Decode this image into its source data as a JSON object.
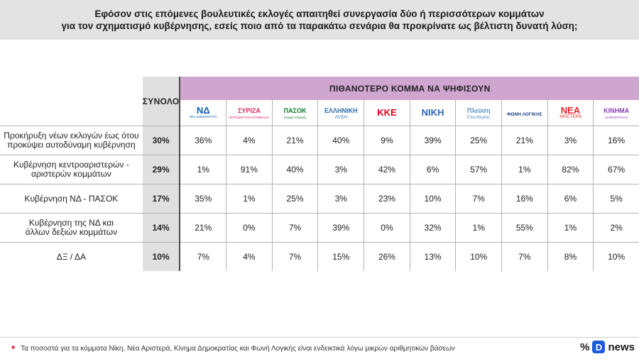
{
  "title": {
    "line1": "Εφόσον στις επόμενες βουλευτικές εκλογές απαιτηθεί συνεργασία δύο ή περισσότερων κομμάτων",
    "line2": "για τον σχηματισμό κυβέρνησης, εσείς ποιο από τα παρακάτω σενάρια θα προκρίνατε ως βέλτιστη δυνατή λύση;"
  },
  "header": {
    "total_label": "ΣΥΝΟΛΟ",
    "party_band_label": "ΠΙΘΑΝΟΤΕΡΟ ΚΟΜΜΑ ΝΑ ΨΗΦΙΣΟΥΝ"
  },
  "parties": [
    {
      "logo_text": "ΝΔ",
      "sub": "ΝΕΑ ΔΗΜΟΚΡΑΤΙΑ",
      "color": "#0d5fb3",
      "icon": "nd-logo-icon"
    },
    {
      "logo_text": "ΣΥΡΙΖΑ",
      "sub": "ΠΡΟΟΔΕΥΤΙΚΗ ΣΥΜΜΑΧΙΑ",
      "color": "#e0245e",
      "icon": "syriza-logo-icon"
    },
    {
      "logo_text": "ΠΑΣΟΚ",
      "sub": "Κίνημα Αλλαγής",
      "color": "#0b7a2e",
      "icon": "pasok-logo-icon"
    },
    {
      "logo_text": "ΕΛΛΗΝΙΚΗ",
      "sub": "ΛΥΣΗ",
      "color": "#2b6ca8",
      "icon": "elliniki-lysi-logo-icon"
    },
    {
      "logo_text": "ΚΚΕ",
      "sub": "",
      "color": "#e0001b",
      "icon": "kke-logo-icon"
    },
    {
      "logo_text": "ΝΙΚΗ",
      "sub": "",
      "color": "#2a66b8",
      "icon": "niki-logo-icon"
    },
    {
      "logo_text": "Πλεύση",
      "sub": "Ελευθερίας",
      "color": "#5a8fc7",
      "icon": "plefsi-logo-icon"
    },
    {
      "logo_text": "ΦΩΝΗ ΛΟΓΙΚΗΣ",
      "sub": "",
      "color": "#1d3f8a",
      "icon": "foni-logikis-logo-icon"
    },
    {
      "logo_text": "ΝΕΑ",
      "sub": "ΑΡΙΣΤΕΡΑ",
      "color": "#e3262c",
      "icon": "nea-aristera-logo-icon"
    },
    {
      "logo_text": "ΚΙΝΗΜΑ",
      "sub": "ΔΗΜΟΚΡΑΤΙΑΣ",
      "color": "#8a3fb5",
      "icon": "kinima-dimokratias-logo-icon"
    }
  ],
  "chart_data": {
    "type": "table",
    "title": "Εφόσον στις επόμενες βουλευτικές εκλογές απαιτηθεί συνεργασία δύο ή περισσότερων κομμάτων για τον σχηματισμό κυβέρνησης, εσείς ποιο από τα παρακάτω σενάρια θα προκρίνατε ως βέλτιστη δυνατή λύση;",
    "columns": [
      "ΣΥΝΟΛΟ",
      "ΝΔ",
      "ΣΥΡΙΖΑ",
      "ΠΑΣΟΚ",
      "ΕΛΛΗΝΙΚΗ ΛΥΣΗ",
      "ΚΚΕ",
      "ΝΙΚΗ",
      "Πλεύση Ελευθερίας",
      "ΦΩΝΗ ΛΟΓΙΚΗΣ",
      "ΝΕΑ ΑΡΙΣΤΕΡΑ",
      "ΚΙΝΗΜΑ ΔΗΜΟΚΡΑΤΙΑΣ"
    ],
    "rows": [
      {
        "label_lines": [
          "Προκήρυξη νέων εκλογών έως ότου",
          "προκύψει αυτοδύναμη κυβέρνηση"
        ],
        "total": "30%",
        "values": [
          "36%",
          "4%",
          "21%",
          "40%",
          "9%",
          "39%",
          "25%",
          "21%",
          "3%",
          "16%"
        ]
      },
      {
        "label_lines": [
          "Κυβέρνηση κεντροαριστερών -",
          "αριστερών κομμάτων"
        ],
        "total": "29%",
        "values": [
          "1%",
          "91%",
          "40%",
          "3%",
          "42%",
          "6%",
          "57%",
          "1%",
          "82%",
          "67%"
        ]
      },
      {
        "label_lines": [
          "Κυβέρνηση ΝΔ - ΠΑΣΟΚ",
          ""
        ],
        "total": "17%",
        "values": [
          "35%",
          "1%",
          "25%",
          "3%",
          "23%",
          "10%",
          "7%",
          "16%",
          "6%",
          "5%"
        ]
      },
      {
        "label_lines": [
          "Κυβέρνηση της ΝΔ και",
          "άλλων δεξιών κομμάτων"
        ],
        "total": "14%",
        "values": [
          "21%",
          "0%",
          "7%",
          "39%",
          "0%",
          "32%",
          "1%",
          "55%",
          "1%",
          "2%"
        ]
      },
      {
        "label_lines": [
          "ΔΞ / ΔΑ",
          ""
        ],
        "total": "10%",
        "values": [
          "7%",
          "4%",
          "7%",
          "15%",
          "26%",
          "13%",
          "10%",
          "7%",
          "8%",
          "10%"
        ]
      }
    ]
  },
  "footnote": {
    "marker": "*",
    "text": "Τα ποσοστά για τα κόμματα Νίκη, Νέα Αριστερά, Κίνημα Δημοκρατίας και Φωνή Λογικής είναι ενδεικτικά λόγω μικρών αριθμητικών βάσεων"
  },
  "brand": {
    "pct": "%",
    "d": "D",
    "news": "news",
    "accent": "#1e5bd6"
  }
}
